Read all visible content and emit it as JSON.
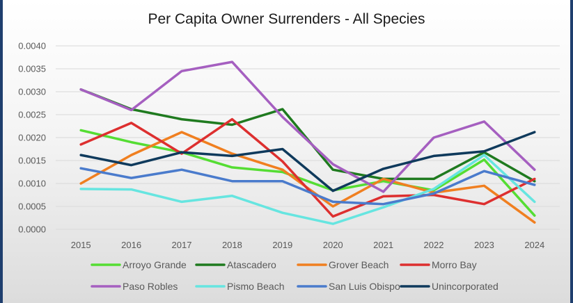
{
  "chart_data": {
    "type": "line",
    "title": "Per Capita Owner Surrenders - All Species",
    "xlabel": "",
    "ylabel": "",
    "x": [
      "2015",
      "2016",
      "2017",
      "2018",
      "2019",
      "2020",
      "2021",
      "2022",
      "2023",
      "2024"
    ],
    "ylim": [
      0,
      0.004
    ],
    "yticks": [
      "0.0000",
      "0.0005",
      "0.0010",
      "0.0015",
      "0.0020",
      "0.0025",
      "0.0030",
      "0.0035",
      "0.0040"
    ],
    "grid": true,
    "legend_position": "bottom",
    "series": [
      {
        "name": "Arroyo Grande",
        "color": "#55dd33",
        "values": [
          0.00216,
          0.0019,
          0.00168,
          0.00135,
          0.00125,
          0.00085,
          0.00105,
          0.00085,
          0.00152,
          0.0003
        ]
      },
      {
        "name": "Atascadero",
        "color": "#1f7a1f",
        "values": [
          0.00305,
          0.00262,
          0.0024,
          0.00228,
          0.00262,
          0.0013,
          0.0011,
          0.0011,
          0.00168,
          0.00105
        ]
      },
      {
        "name": "Grover Beach",
        "color": "#f07f20",
        "values": [
          0.001,
          0.00162,
          0.00212,
          0.00165,
          0.0013,
          0.0005,
          0.0011,
          0.0008,
          0.00095,
          0.00015
        ]
      },
      {
        "name": "Morro Bay",
        "color": "#dd2f2f",
        "values": [
          0.00185,
          0.00232,
          0.00165,
          0.0024,
          0.00148,
          0.00028,
          0.00072,
          0.00075,
          0.00055,
          0.0011
        ]
      },
      {
        "name": "Paso Robles",
        "color": "#a55fc0",
        "values": [
          0.00305,
          0.0026,
          0.00345,
          0.00365,
          0.00245,
          0.00142,
          0.00082,
          0.002,
          0.00235,
          0.0013
        ]
      },
      {
        "name": "Pismo Beach",
        "color": "#66e5e0",
        "values": [
          0.00088,
          0.00087,
          0.0006,
          0.00073,
          0.00036,
          0.00012,
          0.00048,
          0.00088,
          0.00162,
          0.0006
        ]
      },
      {
        "name": "San Luis Obispo",
        "color": "#4a7bcc",
        "values": [
          0.00133,
          0.00112,
          0.0013,
          0.00105,
          0.00105,
          0.0006,
          0.00055,
          0.00078,
          0.00127,
          0.00097
        ]
      },
      {
        "name": "Unincorporated",
        "color": "#0f3a5c",
        "values": [
          0.00162,
          0.0014,
          0.00168,
          0.0016,
          0.00175,
          0.00084,
          0.00132,
          0.0016,
          0.0017,
          0.00212
        ]
      }
    ]
  }
}
